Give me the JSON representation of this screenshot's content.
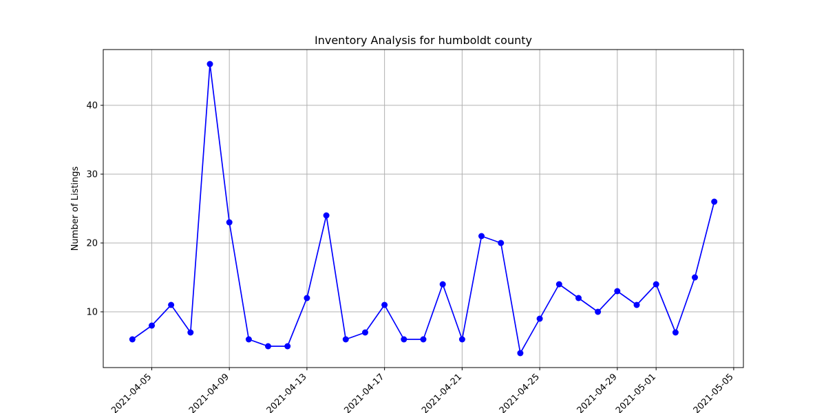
{
  "chart_data": {
    "type": "line",
    "title": "Inventory Analysis for humboldt county",
    "xlabel": "",
    "ylabel": "Number of Listings",
    "x": [
      "2021-04-04",
      "2021-04-05",
      "2021-04-06",
      "2021-04-07",
      "2021-04-08",
      "2021-04-09",
      "2021-04-10",
      "2021-04-11",
      "2021-04-12",
      "2021-04-13",
      "2021-04-14",
      "2021-04-15",
      "2021-04-16",
      "2021-04-17",
      "2021-04-18",
      "2021-04-19",
      "2021-04-20",
      "2021-04-21",
      "2021-04-22",
      "2021-04-23",
      "2021-04-24",
      "2021-04-25",
      "2021-04-26",
      "2021-04-27",
      "2021-04-28",
      "2021-04-29",
      "2021-04-30",
      "2021-05-01",
      "2021-05-02",
      "2021-05-03",
      "2021-05-04"
    ],
    "values": [
      6,
      8,
      11,
      7,
      46,
      23,
      6,
      5,
      5,
      12,
      24,
      6,
      7,
      11,
      6,
      6,
      14,
      6,
      21,
      20,
      4,
      9,
      14,
      12,
      10,
      13,
      11,
      14,
      7,
      15,
      26
    ],
    "xticks": [
      "2021-04-05",
      "2021-04-09",
      "2021-04-13",
      "2021-04-17",
      "2021-04-21",
      "2021-04-25",
      "2021-04-29",
      "2021-05-01",
      "2021-05-05"
    ],
    "yticks": [
      10,
      20,
      30,
      40
    ],
    "xlim": [
      "2021-04-02T12:00",
      "2021-05-05T12:00"
    ],
    "ylim": [
      1.9,
      48.1
    ],
    "grid": true,
    "color": "#0000ff",
    "marker": "circle"
  }
}
